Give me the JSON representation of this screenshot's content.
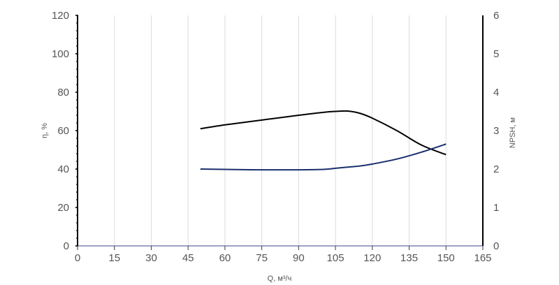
{
  "chart_data": {
    "type": "line",
    "xlabel": "Q, м³/ч",
    "ylabel_left": "η, %",
    "ylabel_right": "NPSH, м",
    "xlim": [
      0,
      165
    ],
    "ylim_left": [
      0,
      120
    ],
    "ylim_right": [
      0,
      6
    ],
    "x_ticks": [
      "0",
      "15",
      "30",
      "45",
      "60",
      "75",
      "90",
      "105",
      "120",
      "135",
      "150",
      "165"
    ],
    "y_left_ticks": [
      "0",
      "20",
      "40",
      "60",
      "80",
      "100",
      "120"
    ],
    "y_right_ticks": [
      "0",
      "1",
      "2",
      "3",
      "4",
      "5",
      "6"
    ],
    "grid": "vertical",
    "series": [
      {
        "axis": "left",
        "color": "#000000",
        "x": [
          50,
          60,
          75,
          90,
          100,
          105,
          110,
          115,
          120,
          130,
          140,
          150
        ],
        "y": [
          61,
          63,
          65.5,
          68,
          69.5,
          70,
          70.2,
          69,
          66.5,
          60,
          52.5,
          47.5
        ]
      },
      {
        "axis": "right",
        "color": "#1a2f6e",
        "x": [
          50,
          60,
          75,
          90,
          100,
          105,
          110,
          115,
          120,
          130,
          140,
          150
        ],
        "y": [
          2.0,
          1.99,
          1.98,
          1.98,
          1.99,
          2.02,
          2.05,
          2.08,
          2.13,
          2.26,
          2.44,
          2.65
        ]
      }
    ]
  }
}
